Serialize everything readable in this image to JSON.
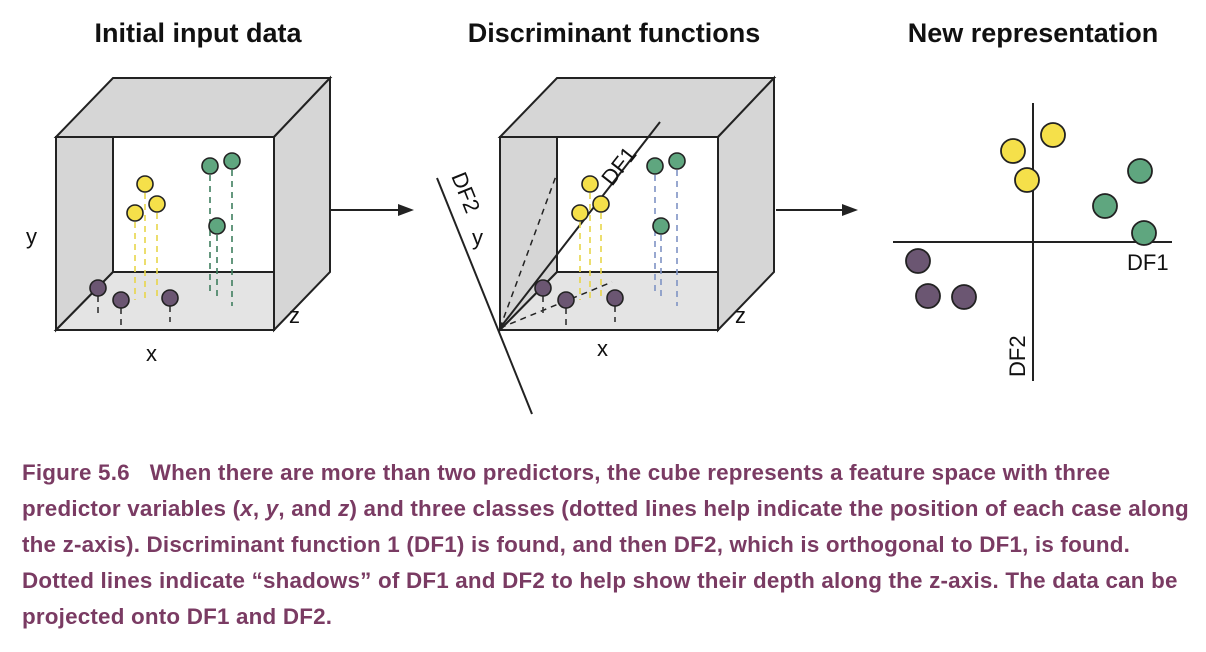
{
  "panels": [
    {
      "title": "Initial input data",
      "axis_labels": {
        "y": "y",
        "x": "x",
        "z": "z"
      }
    },
    {
      "title": "Discriminant functions",
      "axis_labels": {
        "y": "y",
        "x": "x",
        "z": "z",
        "df1": "DF1",
        "df2": "DF2"
      }
    },
    {
      "title": "New representation",
      "axis_labels": {
        "df1": "DF1",
        "df2": "DF2"
      }
    }
  ],
  "colors": {
    "class_purple": "#6b5672",
    "class_yellow": "#f5e04a",
    "class_green": "#5fa67f",
    "cube_fill": "#d6d6d6",
    "caption_text": "#7a3b63"
  },
  "caption": {
    "figure_label": "Figure 5.6",
    "part1": "When there are more than two predictors, the cube represents a feature space with three predictor variables (",
    "var_x": "x",
    "sep1": ", ",
    "var_y": "y",
    "sep2": ", and ",
    "var_z": "z",
    "part2": ") and three classes (dotted lines help indicate the position of each case along the z-axis). Discriminant function 1 (DF1) is found, and then DF2, which is orthogonal to DF1, is found. Dotted lines indicate “shadows” of DF1 and DF2 to help show their depth along the z-axis. The data can be projected onto DF1 and DF2."
  }
}
